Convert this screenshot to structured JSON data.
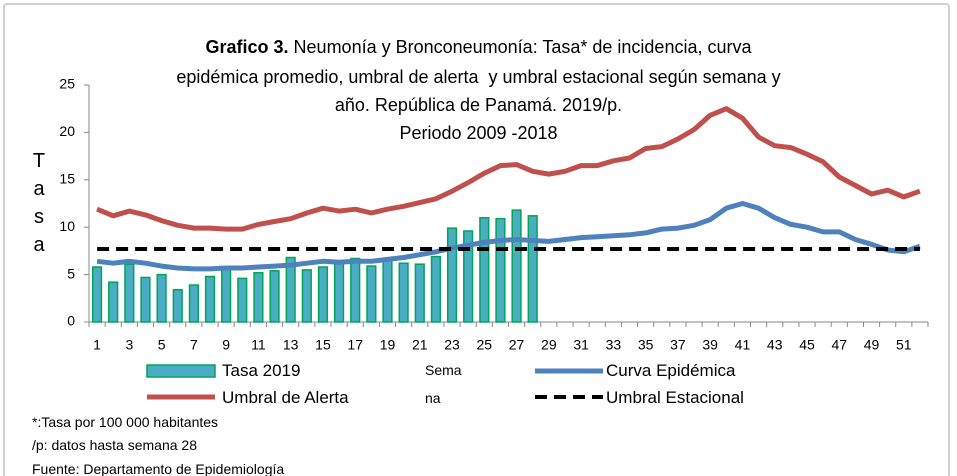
{
  "chart_data": {
    "type": "combo",
    "title_label": "Grafico 3.",
    "title_lines": [
      "Neumonía y Bronconeumonía: Tasa* de incidencia, curva",
      "epidémica promedio, umbral de alerta  y umbral estacional según semana y",
      "año. República de Panamá. 2019/p."
    ],
    "subtitle": "Periodo 2009 -2018",
    "y_label": "Tasa",
    "x_label": "Semana",
    "categories": [
      1,
      null,
      3,
      null,
      5,
      null,
      7,
      null,
      9,
      null,
      11,
      null,
      13,
      null,
      15,
      null,
      17,
      null,
      19,
      null,
      21,
      null,
      23,
      null,
      25,
      null,
      27,
      null,
      29,
      null,
      31,
      null,
      33,
      null,
      35,
      null,
      37,
      null,
      39,
      null,
      41,
      null,
      43,
      null,
      45,
      null,
      47,
      null,
      49,
      null,
      51,
      null
    ],
    "ylim": [
      0,
      25
    ],
    "yticks": [
      0,
      5,
      10,
      15,
      20,
      25
    ],
    "series": [
      {
        "name": "Tasa 2019",
        "kind": "bar",
        "color": "#4bacc6",
        "edge": "#00a651",
        "values": [
          5.8,
          4.2,
          6.1,
          4.7,
          5.0,
          3.4,
          3.9,
          4.8,
          5.7,
          4.6,
          5.2,
          5.4,
          6.8,
          5.5,
          5.8,
          6.3,
          6.7,
          5.9,
          6.6,
          6.2,
          6.1,
          6.9,
          9.9,
          9.6,
          11.0,
          10.9,
          11.8,
          11.2,
          null,
          null,
          null,
          null,
          null,
          null,
          null,
          null,
          null,
          null,
          null,
          null,
          null,
          null,
          null,
          null,
          null,
          null,
          null,
          null,
          null,
          null,
          null,
          null
        ]
      },
      {
        "name": "Umbral de Alerta",
        "kind": "line",
        "color": "#c0504d",
        "values": [
          11.9,
          11.2,
          11.7,
          11.3,
          10.7,
          10.2,
          9.9,
          9.9,
          9.8,
          9.8,
          10.3,
          10.6,
          10.9,
          11.5,
          12.0,
          11.7,
          11.9,
          11.5,
          11.9,
          12.2,
          12.6,
          13.0,
          13.8,
          14.7,
          15.7,
          16.5,
          16.6,
          15.9,
          15.6,
          15.9,
          16.5,
          16.5,
          17.0,
          17.3,
          18.3,
          18.5,
          19.3,
          20.3,
          21.8,
          22.5,
          21.5,
          19.5,
          18.6,
          18.4,
          17.7,
          16.9,
          15.3,
          14.4,
          13.5,
          13.9,
          13.2,
          13.8
        ]
      },
      {
        "name": "Curva Epidémica",
        "kind": "line",
        "color": "#4f81bd",
        "values": [
          6.4,
          6.2,
          6.4,
          6.2,
          5.9,
          5.7,
          5.6,
          5.6,
          5.7,
          5.7,
          5.8,
          5.9,
          6.0,
          6.2,
          6.4,
          6.3,
          6.4,
          6.4,
          6.6,
          6.8,
          7.1,
          7.4,
          7.8,
          8.1,
          8.4,
          8.6,
          8.7,
          8.6,
          8.5,
          8.7,
          8.9,
          9.0,
          9.1,
          9.2,
          9.4,
          9.8,
          9.9,
          10.2,
          10.8,
          12.0,
          12.5,
          12.0,
          11.0,
          10.3,
          10.0,
          9.5,
          9.5,
          8.7,
          8.2,
          7.6,
          7.4,
          8.0
        ]
      },
      {
        "name": "Umbral Estacional",
        "kind": "dashed",
        "color": "#000000",
        "values": [
          7.7,
          7.7,
          7.7,
          7.7,
          7.7,
          7.7,
          7.7,
          7.7,
          7.7,
          7.7,
          7.7,
          7.7,
          7.7,
          7.7,
          7.7,
          7.7,
          7.7,
          7.7,
          7.7,
          7.7,
          7.7,
          7.7,
          7.7,
          7.7,
          7.7,
          7.7,
          7.7,
          7.7,
          7.7,
          7.7,
          7.7,
          7.7,
          7.7,
          7.7,
          7.7,
          7.7,
          7.7,
          7.7,
          7.7,
          7.7,
          7.7,
          7.7,
          7.7,
          7.7,
          7.7,
          7.7,
          7.7,
          7.7,
          7.7,
          7.7,
          7.7,
          7.7
        ]
      }
    ],
    "notes": [
      "*:Tasa por 100 000 habitantes",
      "/p: datos hasta semana  28",
      "Fuente: Departamento de Epidemiología"
    ]
  }
}
